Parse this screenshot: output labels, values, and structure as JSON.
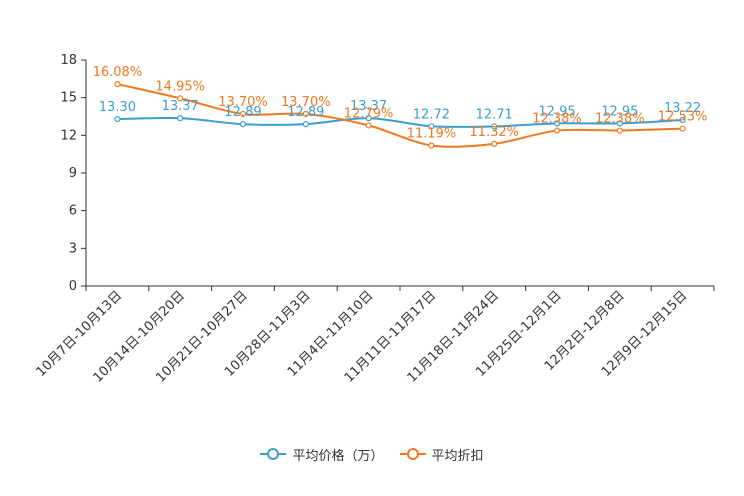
{
  "chart_data": {
    "type": "line",
    "title": "",
    "xlabel": "",
    "ylabel": "",
    "ylim": [
      0,
      18
    ],
    "yticks": [
      0,
      3,
      6,
      9,
      12,
      15,
      18
    ],
    "categories": [
      "10月7日-10月13日",
      "10月14日-10月20日",
      "10月21日-10月27日",
      "10月28日-11月3日",
      "11月4日-11月10日",
      "11月11日-11月17日",
      "11月18日-11月24日",
      "11月25日-12月1日",
      "12月2日-12月8日",
      "12月9日-12月15日"
    ],
    "series": [
      {
        "name": "平均价格（万）",
        "color": "#3a9fcf",
        "values": [
          13.3,
          13.37,
          12.89,
          12.89,
          13.37,
          12.72,
          12.71,
          12.95,
          12.95,
          13.22
        ],
        "labels": [
          "13.30",
          "13.37",
          "12.89",
          "12.89",
          "13.37",
          "12.72",
          "12.71",
          "12.95",
          "12.95",
          "13.22"
        ]
      },
      {
        "name": "平均折扣",
        "color": "#f07820",
        "values": [
          16.08,
          14.95,
          13.7,
          13.7,
          12.79,
          11.19,
          11.32,
          12.38,
          12.38,
          12.53
        ],
        "labels": [
          "16.08%",
          "14.95%",
          "13.70%",
          "13.70%",
          "12.79%",
          "11.19%",
          "11.32%",
          "12.38%",
          "12.38%",
          "12.53%"
        ]
      }
    ],
    "legend_position": "bottom-center",
    "grid": false
  }
}
